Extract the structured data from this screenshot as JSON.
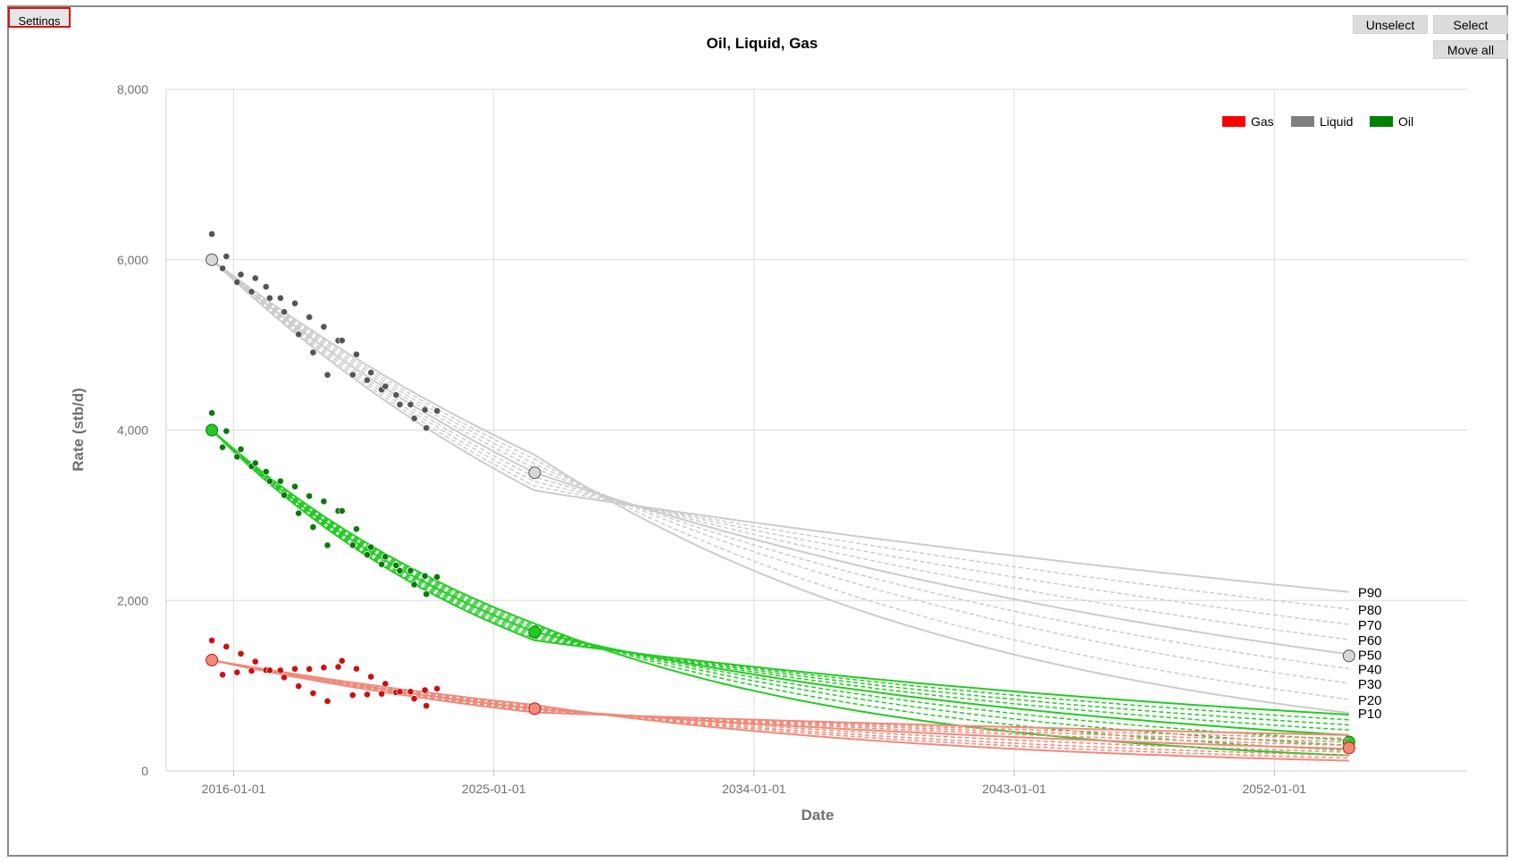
{
  "toolbar": {
    "settings_label": "Settings",
    "unselect_label": "Unselect",
    "select_label": "Select",
    "move_all_label": "Move all"
  },
  "chart_data": {
    "type": "line",
    "title": "Oil, Liquid, Gas",
    "xlabel": "Date",
    "ylabel": "Rate (stb/d)",
    "x_ticks": [
      "2016-01-01",
      "2025-01-01",
      "2034-01-01",
      "2043-01-01",
      "2052-01-01"
    ],
    "y_ticks": [
      "0",
      "2,000",
      "4,000",
      "6,000",
      "8,000"
    ],
    "ylim": [
      0,
      8000
    ],
    "xlim": [
      "2013-09-01",
      "2058-09-01"
    ],
    "grid": true,
    "legend_position": "top-right",
    "legend": [
      {
        "name": "Gas",
        "color": "#ff0000"
      },
      {
        "name": "Liquid",
        "color": "#808080"
      },
      {
        "name": "Oil",
        "color": "#008000"
      }
    ],
    "percentile_labels": [
      "P90",
      "P80",
      "P70",
      "P60",
      "P50",
      "P40",
      "P30",
      "P20",
      "P10"
    ],
    "history_end_date": "2022-09-01",
    "anchor_date": "2026-06-01",
    "forecast_end_date": "2054-08-01",
    "series": [
      {
        "name": "Liquid",
        "line_color": "#cccccc",
        "point_color": "#555555",
        "initial_date": "2015-04-01",
        "initial_rate": 6000,
        "history_points": [
          [
            "2015-04-01",
            6050
          ],
          [
            "2015-10-01",
            5850
          ],
          [
            "2016-04-01",
            5700
          ],
          [
            "2016-10-01",
            5720
          ],
          [
            "2017-04-01",
            5550
          ],
          [
            "2017-10-01",
            5450
          ],
          [
            "2018-04-01",
            5250
          ],
          [
            "2018-10-01",
            5100
          ],
          [
            "2019-04-01",
            4900
          ],
          [
            "2019-10-01",
            4800
          ],
          [
            "2020-04-01",
            4700
          ],
          [
            "2020-10-01",
            4550
          ],
          [
            "2021-04-01",
            4450
          ],
          [
            "2021-10-01",
            4300
          ],
          [
            "2022-04-01",
            4200
          ],
          [
            "2022-09-01",
            4150
          ]
        ],
        "anchor_rate": 3500,
        "end_marker_rate": 1350,
        "forecast_end_rates": [
          2100,
          1900,
          1720,
          1540,
          1370,
          1200,
          1030,
          840,
          680
        ]
      },
      {
        "name": "Oil",
        "line_color": "#22cc22",
        "point_color": "#0a7a0a",
        "initial_date": "2015-04-01",
        "initial_rate": 4000,
        "history_points": [
          [
            "2015-04-01",
            3950
          ],
          [
            "2015-10-01",
            3800
          ],
          [
            "2016-04-01",
            3650
          ],
          [
            "2016-10-01",
            3550
          ],
          [
            "2017-04-01",
            3400
          ],
          [
            "2017-10-01",
            3300
          ],
          [
            "2018-04-01",
            3150
          ],
          [
            "2018-10-01",
            3050
          ],
          [
            "2019-04-01",
            2900
          ],
          [
            "2019-10-01",
            2800
          ],
          [
            "2020-04-01",
            2650
          ],
          [
            "2020-10-01",
            2500
          ],
          [
            "2021-04-01",
            2450
          ],
          [
            "2021-10-01",
            2350
          ],
          [
            "2022-04-01",
            2250
          ],
          [
            "2022-09-01",
            2200
          ]
        ],
        "anchor_rate": 1630,
        "end_marker_rate": 340,
        "forecast_end_rates": [
          660,
          600,
          540,
          480,
          420,
          360,
          300,
          240,
          180
        ]
      },
      {
        "name": "Gas",
        "line_color": "#f08a7a",
        "point_color": "#cc1010",
        "initial_date": "2015-04-01",
        "initial_rate": 1300,
        "history_points": [
          [
            "2015-04-01",
            1280
          ],
          [
            "2015-10-01",
            1270
          ],
          [
            "2016-04-01",
            1250
          ],
          [
            "2016-10-01",
            1220
          ],
          [
            "2017-04-01",
            1180
          ],
          [
            "2017-10-01",
            1160
          ],
          [
            "2018-04-01",
            1120
          ],
          [
            "2018-10-01",
            1100
          ],
          [
            "2019-04-01",
            1070
          ],
          [
            "2019-10-01",
            1040
          ],
          [
            "2020-04-01",
            1010
          ],
          [
            "2020-10-01",
            980
          ],
          [
            "2021-04-01",
            960
          ],
          [
            "2021-10-01",
            930
          ],
          [
            "2022-04-01",
            910
          ],
          [
            "2022-09-01",
            890
          ]
        ],
        "anchor_rate": 730,
        "end_marker_rate": 270,
        "forecast_end_rates": [
          420,
          380,
          340,
          300,
          260,
          220,
          180,
          150,
          120
        ]
      }
    ]
  }
}
